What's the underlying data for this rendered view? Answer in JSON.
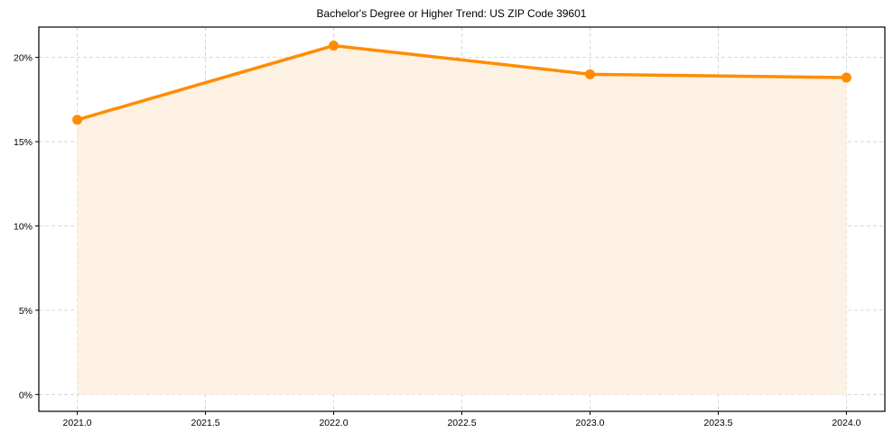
{
  "chart_data": {
    "type": "line",
    "title": "Bachelor's Degree or Higher Trend: US ZIP Code 39601",
    "xlabel": "",
    "ylabel": "",
    "x": [
      2021,
      2022,
      2023,
      2024
    ],
    "series": [
      {
        "name": "Bachelor's Degree or Higher",
        "values": [
          16.3,
          20.7,
          19.0,
          18.8
        ],
        "color": "#FF8C00",
        "fill": "#FDF1E3"
      }
    ],
    "xlim": [
      2020.85,
      2024.15
    ],
    "ylim": [
      -1.0,
      21.8
    ],
    "xticks": [
      2021.0,
      2021.5,
      2022.0,
      2022.5,
      2023.0,
      2023.5,
      2024.0
    ],
    "xtick_labels": [
      "2021.0",
      "2021.5",
      "2022.0",
      "2022.5",
      "2023.0",
      "2023.5",
      "2024.0"
    ],
    "yticks": [
      0,
      5,
      10,
      15,
      20
    ],
    "ytick_labels": [
      "0%",
      "5%",
      "10%",
      "15%",
      "20%"
    ],
    "grid": true,
    "legend": null
  }
}
